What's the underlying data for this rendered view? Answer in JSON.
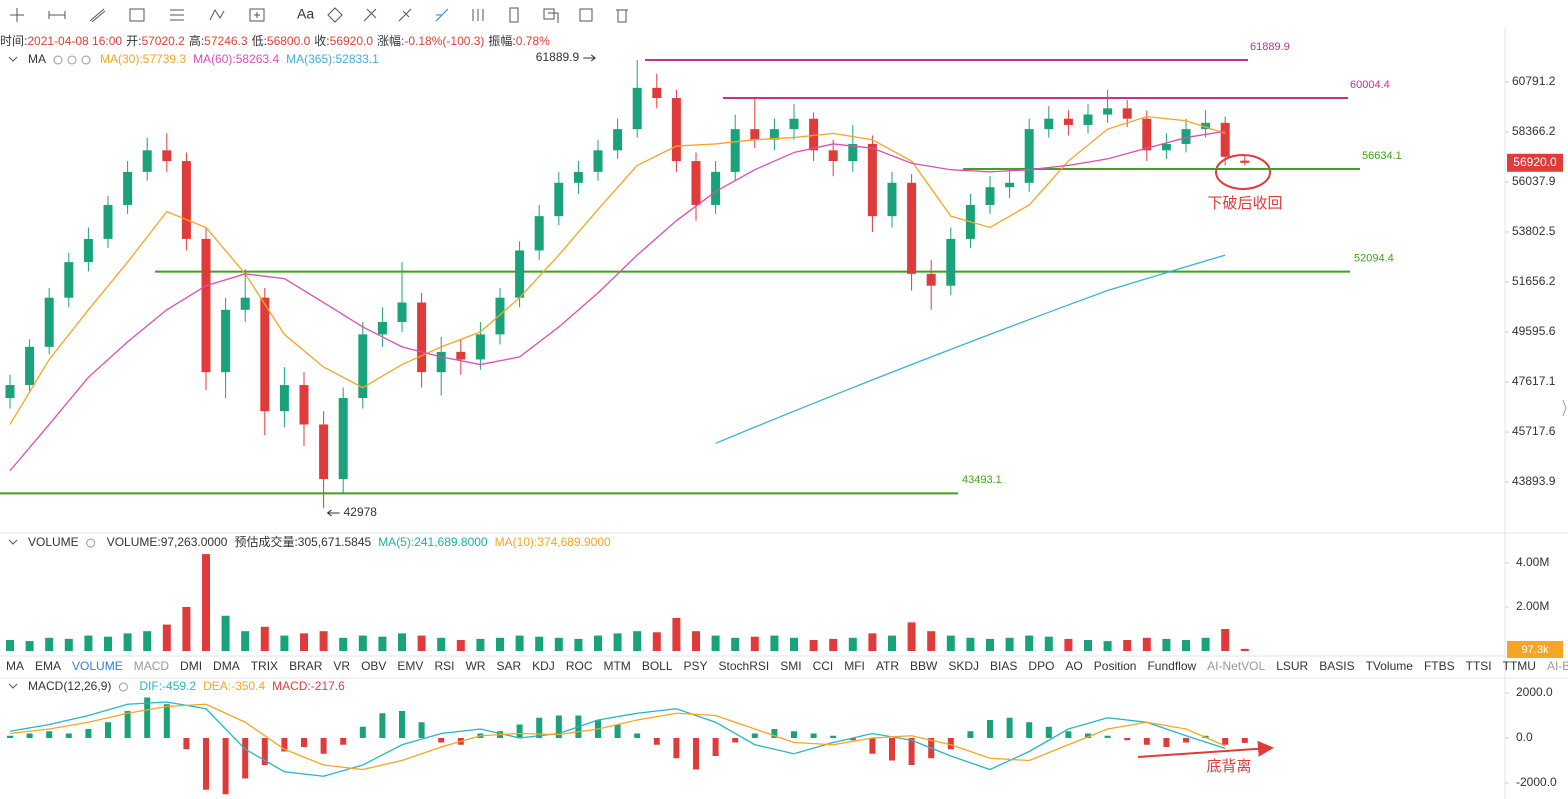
{
  "toolbar": {
    "text_tool": "Aa"
  },
  "info_bar": [
    {
      "label": "时间:",
      "value": "2021-04-08 16:00"
    },
    {
      "label": "开:",
      "value": "57020.2"
    },
    {
      "label": "高:",
      "value": "57246.3"
    },
    {
      "label": "低:",
      "value": "56800.0"
    },
    {
      "label": "收:",
      "value": "56920.0"
    },
    {
      "label": "涨幅:",
      "value": "-0.18%(-100.3)"
    },
    {
      "label": "振幅:",
      "value": "0.78%"
    }
  ],
  "main_legend": {
    "title": "MA"
  },
  "annotations": {
    "breakdown": "下破后收回",
    "divergence": "底背离"
  },
  "tabs": [
    {
      "text": "MA"
    },
    {
      "text": "EMA"
    },
    {
      "text": "VOLUME",
      "state": "active"
    },
    {
      "text": "MACD",
      "state": "muted"
    },
    {
      "text": "DMI"
    },
    {
      "text": "DMA"
    },
    {
      "text": "TRIX"
    },
    {
      "text": "BRAR"
    },
    {
      "text": "VR"
    },
    {
      "text": "OBV"
    },
    {
      "text": "EMV"
    },
    {
      "text": "RSI"
    },
    {
      "text": "WR"
    },
    {
      "text": "SAR"
    },
    {
      "text": "KDJ"
    },
    {
      "text": "ROC"
    },
    {
      "text": "MTM"
    },
    {
      "text": "BOLL"
    },
    {
      "text": "PSY"
    },
    {
      "text": "StochRSI"
    },
    {
      "text": "SMI"
    },
    {
      "text": "CCI"
    },
    {
      "text": "MFI"
    },
    {
      "text": "ATR"
    },
    {
      "text": "BBW"
    },
    {
      "text": "SKDJ"
    },
    {
      "text": "BIAS"
    },
    {
      "text": "DPO"
    },
    {
      "text": "AO"
    },
    {
      "text": "Position"
    },
    {
      "text": "Fundflow"
    },
    {
      "text": "AI-NetVOL",
      "state": "muted"
    },
    {
      "text": "LSUR"
    },
    {
      "text": "BASIS"
    },
    {
      "text": "TVolume"
    },
    {
      "text": "FTBS"
    },
    {
      "text": "TTSI"
    },
    {
      "text": "TTMU"
    },
    {
      "text": "AI-BSI",
      "state": "muted"
    }
  ],
  "chart_data": [
    {
      "type": "candlestick",
      "scale": "log",
      "up_color": "#1aa37a",
      "down_color": "#e03b3b",
      "ylim": [
        42145,
        63520
      ],
      "yticks": [
        60791.2,
        58366.2,
        56037.9,
        53802.5,
        51656.2,
        49595.6,
        47617.1,
        45717.6,
        43893.9
      ],
      "last_price": {
        "value": 56920,
        "label": "56920.0"
      },
      "high_marker": 61889.9,
      "low_marker": 42978,
      "levels": [
        {
          "value": 61889.9,
          "color": "#c2338f"
        },
        {
          "value": 60004.4,
          "color": "#c2338f"
        },
        {
          "value": 56634.1,
          "color": "#3fa21a"
        },
        {
          "value": 52094.4,
          "color": "#3fa21a"
        },
        {
          "value": 43493.1,
          "color": "#3fa21a"
        }
      ],
      "candles": [
        [
          47000,
          47900,
          46600,
          47500
        ],
        [
          47500,
          49300,
          47200,
          49000
        ],
        [
          49000,
          51400,
          48700,
          51000
        ],
        [
          51000,
          52900,
          50600,
          52500
        ],
        [
          52500,
          54000,
          52100,
          53500
        ],
        [
          53500,
          55400,
          53100,
          55000
        ],
        [
          55000,
          57000,
          54600,
          56500
        ],
        [
          56500,
          58100,
          56100,
          57500
        ],
        [
          57500,
          58300,
          56500,
          57000
        ],
        [
          57000,
          57400,
          53000,
          53500
        ],
        [
          53500,
          54000,
          47300,
          48000
        ],
        [
          48000,
          51000,
          47000,
          50500
        ],
        [
          50500,
          52200,
          50000,
          51000
        ],
        [
          51000,
          51400,
          45600,
          46500
        ],
        [
          46500,
          48200,
          45900,
          47500
        ],
        [
          47500,
          48000,
          45200,
          46000
        ],
        [
          46000,
          46500,
          42978,
          44000
        ],
        [
          44000,
          47400,
          43500,
          47000
        ],
        [
          47000,
          50000,
          46600,
          49500
        ],
        [
          49500,
          50600,
          49000,
          50000
        ],
        [
          50000,
          52500,
          49600,
          50800
        ],
        [
          50800,
          51200,
          47400,
          48000
        ],
        [
          48000,
          49400,
          47100,
          48800
        ],
        [
          48800,
          49300,
          47900,
          48500
        ],
        [
          48500,
          50000,
          48100,
          49500
        ],
        [
          49500,
          51400,
          49100,
          51000
        ],
        [
          51000,
          53400,
          50600,
          53000
        ],
        [
          53000,
          55000,
          52600,
          54500
        ],
        [
          54500,
          56500,
          54100,
          56000
        ],
        [
          56000,
          57000,
          55500,
          56500
        ],
        [
          56500,
          58000,
          56100,
          57500
        ],
        [
          57500,
          59000,
          57100,
          58500
        ],
        [
          58500,
          61889.9,
          58100,
          60500
        ],
        [
          60500,
          61200,
          59500,
          60000
        ],
        [
          60000,
          60400,
          56500,
          57000
        ],
        [
          57000,
          57400,
          54300,
          55000
        ],
        [
          55000,
          57000,
          54600,
          56500
        ],
        [
          56500,
          59200,
          56100,
          58500
        ],
        [
          58500,
          60000,
          57600,
          58000
        ],
        [
          58000,
          59000,
          57500,
          58500
        ],
        [
          58500,
          59700,
          58000,
          59000
        ],
        [
          59000,
          59300,
          57000,
          57500
        ],
        [
          57500,
          58000,
          56300,
          57000
        ],
        [
          57000,
          58700,
          56500,
          57800
        ],
        [
          57800,
          58200,
          53800,
          54500
        ],
        [
          54500,
          56500,
          54000,
          56000
        ],
        [
          56000,
          56400,
          51300,
          52000
        ],
        [
          52000,
          52600,
          50500,
          51500
        ],
        [
          51500,
          54000,
          51100,
          53500
        ],
        [
          53500,
          55500,
          53100,
          55000
        ],
        [
          55000,
          56300,
          54600,
          55800
        ],
        [
          55800,
          56600,
          55300,
          56000
        ],
        [
          56000,
          59000,
          55600,
          58500
        ],
        [
          58500,
          59600,
          58100,
          59000
        ],
        [
          59000,
          59400,
          58200,
          58700
        ],
        [
          58700,
          59700,
          58300,
          59200
        ],
        [
          59200,
          60400,
          58800,
          59500
        ],
        [
          59500,
          59900,
          58600,
          59000
        ],
        [
          59000,
          59400,
          57000,
          57500
        ],
        [
          57500,
          58300,
          57100,
          57800
        ],
        [
          57800,
          59000,
          57400,
          58500
        ],
        [
          58500,
          59400,
          58100,
          58800
        ],
        [
          58800,
          59100,
          56800,
          57200
        ],
        [
          57020.2,
          57246.3,
          56800,
          56920
        ]
      ],
      "series": [
        {
          "label": "MA(30):57739.3",
          "color": "#f5a623",
          "values": [
            46000,
            48500,
            50500,
            52500,
            54700,
            54000,
            52000,
            49500,
            48200,
            47400,
            48300,
            49000,
            49600,
            51000,
            52800,
            54800,
            56800,
            57700,
            57800,
            58000,
            58100,
            58300,
            58000,
            57000,
            54500,
            54000,
            55000,
            57000,
            58500,
            59100,
            58900,
            58300
          ]
        },
        {
          "label": "MA(60):58263.4",
          "color": "#d94fb4",
          "values": [
            44300,
            46000,
            47800,
            49200,
            50500,
            51500,
            52000,
            51800,
            50800,
            49800,
            49000,
            48600,
            48300,
            48600,
            49800,
            51200,
            52800,
            54300,
            55600,
            56600,
            57400,
            57800,
            57600,
            56900,
            56600,
            56500,
            56600,
            56800,
            57100,
            57600,
            58100,
            58400
          ]
        },
        {
          "label": "MA(365):52833.1",
          "color": "#3bb0d9",
          "values": [
            null,
            null,
            null,
            null,
            null,
            null,
            null,
            null,
            null,
            null,
            null,
            null,
            null,
            null,
            null,
            null,
            null,
            null,
            45300,
            45900,
            46500,
            47100,
            47700,
            48300,
            48900,
            49500,
            50100,
            50700,
            51300,
            51800,
            52300,
            52800
          ]
        }
      ]
    },
    {
      "type": "bar",
      "title": "VOLUME",
      "legend": [
        {
          "text": "VOLUME:97,263.0000"
        },
        {
          "text": "预估成交量:305,671.5845"
        },
        {
          "text": "MA(5):241,689.8000",
          "color": "#19b39a"
        },
        {
          "text": "MA(10):374,689.9000",
          "color": "#f5a623"
        }
      ],
      "ylim": [
        0,
        4450000
      ],
      "yticks": [
        {
          "value": 4000000,
          "label": "4.00M"
        },
        {
          "value": 2000000,
          "label": "2.00M"
        }
      ],
      "last_value": {
        "value": 97263,
        "label": "97.3k"
      },
      "values": [
        500000,
        450000,
        600000,
        550000,
        700000,
        650000,
        800000,
        900000,
        1200000,
        2000000,
        4400000,
        1600000,
        900000,
        1100000,
        700000,
        800000,
        900000,
        600000,
        700000,
        650000,
        800000,
        700000,
        600000,
        500000,
        550000,
        600000,
        700000,
        650000,
        600000,
        550000,
        700000,
        800000,
        900000,
        850000,
        1500000,
        900000,
        700000,
        600000,
        650000,
        700000,
        600000,
        500000,
        550000,
        600000,
        800000,
        700000,
        1300000,
        900000,
        700000,
        600000,
        550000,
        600000,
        700000,
        650000,
        550000,
        500000,
        450000,
        500000,
        600000,
        550000,
        500000,
        600000,
        1000000,
        97263
      ]
    },
    {
      "type": "macd",
      "title": "MACD(12,26,9)",
      "ylim": [
        -2667,
        2133
      ],
      "yticks": [
        {
          "value": 2000,
          "label": "2000.0"
        },
        {
          "value": 0,
          "label": "0.0"
        },
        {
          "value": -2000,
          "label": "-2000.0"
        }
      ],
      "up_color": "#1aa37a",
      "down_color": "#e03b3b",
      "histogram": {
        "label": "MACD:-217.6",
        "color": "#e03b3b",
        "values": [
          100,
          200,
          300,
          200,
          400,
          700,
          1200,
          1800,
          1500,
          -500,
          -2300,
          -2500,
          -1800,
          -1200,
          -600,
          -400,
          -700,
          -300,
          500,
          1100,
          1200,
          700,
          -200,
          -300,
          200,
          300,
          600,
          900,
          1000,
          1000,
          800,
          600,
          200,
          -300,
          -900,
          -1400,
          -800,
          -200,
          200,
          400,
          300,
          200,
          100,
          -100,
          -700,
          -1000,
          -1200,
          -900,
          -500,
          300,
          800,
          900,
          700,
          500,
          300,
          200,
          100,
          -100,
          -300,
          -400,
          -200,
          100,
          -300,
          -217.6
        ]
      },
      "series": [
        {
          "label": "DIF:-459.2",
          "color": "#26b5c9",
          "values": [
            300,
            600,
            1000,
            1500,
            1600,
            1300,
            -500,
            -1500,
            -1700,
            -1200,
            -300,
            200,
            400,
            0,
            200,
            800,
            1100,
            1300,
            700,
            -300,
            -700,
            -200,
            200,
            -100,
            -800,
            -1400,
            -600,
            400,
            900,
            700,
            100,
            -459.2
          ]
        },
        {
          "label": "DEA:-350.4",
          "color": "#f5a623",
          "values": [
            200,
            400,
            700,
            1100,
            1400,
            1500,
            700,
            -500,
            -1200,
            -1400,
            -1000,
            -400,
            100,
            200,
            150,
            400,
            800,
            1100,
            1000,
            400,
            -200,
            -300,
            0,
            100,
            -300,
            -900,
            -1000,
            -300,
            400,
            700,
            400,
            -350.4
          ]
        }
      ]
    }
  ]
}
